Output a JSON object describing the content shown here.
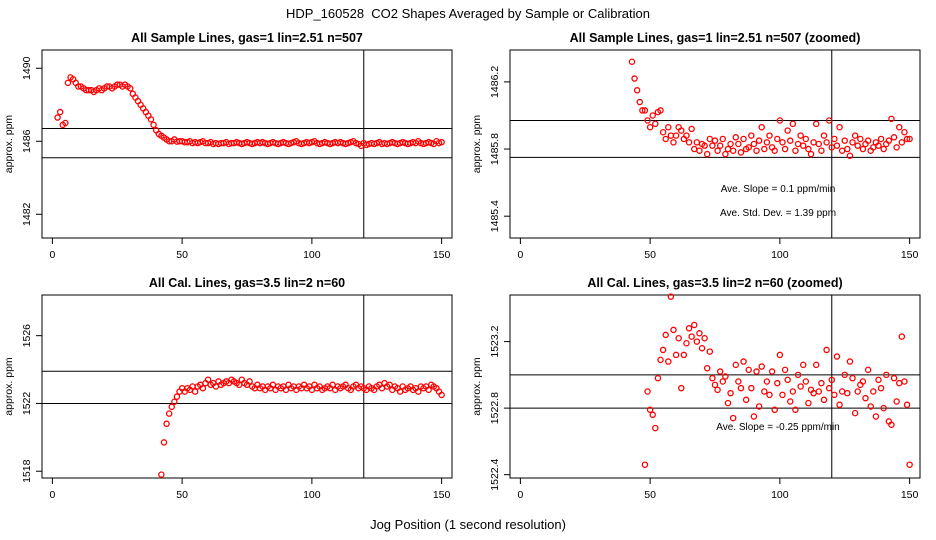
{
  "title": "HDP_160528  CO2 Shapes Averaged by Sample or Calibration",
  "xlabel": "Jog Position (1 second resolution)",
  "colors": {
    "points": "#ff0000",
    "lines": "#000000"
  },
  "chart_data": [
    {
      "type": "scatter",
      "title": "All Sample Lines, gas=1 lin=2.51 n=507",
      "ylabel": "approx. ppm",
      "xlim": [
        -4,
        154
      ],
      "ylim": [
        1480.7,
        1491.0
      ],
      "xticks": [
        "0",
        "50",
        "100",
        "150"
      ],
      "yticks": [
        "1482",
        "1486",
        "1490"
      ],
      "hlines": [
        1486.7,
        1485.1
      ],
      "vline": 120,
      "x": [
        2,
        3,
        4,
        5,
        6,
        7,
        8,
        9,
        10,
        11,
        12,
        13,
        14,
        15,
        16,
        17,
        18,
        19,
        20,
        21,
        22,
        23,
        24,
        25,
        26,
        27,
        28,
        29,
        30,
        31,
        32,
        33,
        34,
        35,
        36,
        37,
        38,
        39,
        40,
        41,
        42,
        43,
        44,
        45,
        46,
        47,
        48,
        49,
        50,
        51,
        52,
        53,
        54,
        55,
        56,
        57,
        58,
        59,
        60,
        61,
        62,
        63,
        64,
        65,
        66,
        67,
        68,
        69,
        70,
        71,
        72,
        73,
        74,
        75,
        76,
        77,
        78,
        79,
        80,
        81,
        82,
        83,
        84,
        85,
        86,
        87,
        88,
        89,
        90,
        91,
        92,
        93,
        94,
        95,
        96,
        97,
        98,
        99,
        100,
        101,
        102,
        103,
        104,
        105,
        106,
        107,
        108,
        109,
        110,
        111,
        112,
        113,
        114,
        115,
        116,
        117,
        118,
        119,
        120,
        121,
        122,
        123,
        124,
        125,
        126,
        127,
        128,
        129,
        130,
        131,
        132,
        133,
        134,
        135,
        136,
        137,
        138,
        139,
        140,
        141,
        142,
        143,
        144,
        145,
        146,
        147,
        148,
        149,
        150
      ],
      "y": [
        1487.3,
        1487.6,
        1486.9,
        1487.0,
        1489.2,
        1489.5,
        1489.4,
        1489.2,
        1489.0,
        1489.0,
        1488.9,
        1488.8,
        1488.8,
        1488.8,
        1488.7,
        1488.8,
        1488.9,
        1488.8,
        1488.9,
        1489.0,
        1489.0,
        1488.9,
        1489.0,
        1489.1,
        1489.1,
        1489.0,
        1489.1,
        1489.0,
        1488.9,
        1488.6,
        1488.4,
        1488.2,
        1488.0,
        1487.8,
        1487.6,
        1487.4,
        1487.2,
        1486.9,
        1486.6,
        1486.4,
        1486.3,
        1486.2,
        1486.1,
        1486.0,
        1486.0,
        1486.1,
        1485.98,
        1486.0,
        1486.0,
        1485.95,
        1485.95,
        1486.0,
        1485.9,
        1485.95,
        1485.9,
        1485.95,
        1486.0,
        1485.9,
        1485.9,
        1485.95,
        1485.85,
        1485.9,
        1485.85,
        1485.9,
        1485.9,
        1485.95,
        1485.85,
        1485.9,
        1485.9,
        1485.95,
        1485.9,
        1485.85,
        1485.9,
        1485.95,
        1485.9,
        1485.85,
        1485.9,
        1485.95,
        1485.9,
        1485.95,
        1485.9,
        1485.85,
        1485.9,
        1485.95,
        1485.9,
        1485.85,
        1485.9,
        1485.95,
        1485.9,
        1485.85,
        1485.9,
        1485.95,
        1486.0,
        1485.9,
        1485.85,
        1485.9,
        1485.95,
        1485.9,
        1485.95,
        1486.0,
        1485.9,
        1485.85,
        1485.9,
        1485.95,
        1485.9,
        1485.85,
        1485.9,
        1485.95,
        1485.9,
        1485.95,
        1485.9,
        1485.85,
        1485.9,
        1485.95,
        1486.0,
        1485.9,
        1485.85,
        1485.75,
        1485.9,
        1485.8,
        1485.85,
        1485.9,
        1485.85,
        1485.9,
        1485.95,
        1485.85,
        1485.9,
        1485.85,
        1485.9,
        1485.95,
        1485.9,
        1485.85,
        1485.9,
        1485.95,
        1485.9,
        1485.85,
        1485.9,
        1485.95,
        1485.9,
        1486.0,
        1485.9,
        1485.85,
        1485.9,
        1485.95,
        1485.9,
        1485.85,
        1486.0,
        1485.9,
        1485.95
      ],
      "annotations": []
    },
    {
      "type": "scatter",
      "title": "All Sample Lines, gas=1 lin=2.51 n=507 (zoomed)",
      "ylabel": "approx. ppm",
      "xlim": [
        -4,
        154
      ],
      "ylim": [
        1485.27,
        1486.39
      ],
      "xticks": [
        "0",
        "50",
        "100",
        "150"
      ],
      "yticks": [
        "1485.4",
        "1485.8",
        "1486.2"
      ],
      "hlines": [
        1485.97,
        1485.75
      ],
      "vline": 120,
      "x": [
        43,
        44,
        45,
        46,
        47,
        48,
        49,
        50,
        51,
        52,
        53,
        54,
        55,
        56,
        57,
        58,
        59,
        60,
        61,
        62,
        63,
        64,
        65,
        66,
        67,
        68,
        69,
        70,
        71,
        72,
        73,
        74,
        75,
        76,
        77,
        78,
        79,
        80,
        81,
        82,
        83,
        84,
        85,
        86,
        87,
        88,
        89,
        90,
        91,
        92,
        93,
        94,
        95,
        96,
        97,
        98,
        99,
        100,
        101,
        102,
        103,
        104,
        105,
        106,
        107,
        108,
        109,
        110,
        111,
        112,
        113,
        114,
        115,
        116,
        117,
        118,
        119,
        120,
        121,
        122,
        123,
        124,
        125,
        126,
        127,
        128,
        129,
        130,
        131,
        132,
        133,
        134,
        135,
        136,
        137,
        138,
        139,
        140,
        141,
        142,
        143,
        144,
        145,
        146,
        147,
        148,
        149,
        150
      ],
      "y": [
        1486.32,
        1486.22,
        1486.15,
        1486.08,
        1486.03,
        1486.03,
        1485.97,
        1485.93,
        1486.0,
        1485.95,
        1486.02,
        1486.03,
        1485.9,
        1485.86,
        1485.93,
        1485.88,
        1485.84,
        1485.88,
        1485.93,
        1485.91,
        1485.86,
        1485.88,
        1485.84,
        1485.92,
        1485.8,
        1485.84,
        1485.79,
        1485.83,
        1485.82,
        1485.77,
        1485.86,
        1485.82,
        1485.85,
        1485.79,
        1485.82,
        1485.86,
        1485.77,
        1485.8,
        1485.83,
        1485.79,
        1485.87,
        1485.83,
        1485.78,
        1485.86,
        1485.8,
        1485.81,
        1485.88,
        1485.83,
        1485.79,
        1485.85,
        1485.93,
        1485.8,
        1485.84,
        1485.88,
        1485.81,
        1485.79,
        1485.86,
        1485.97,
        1485.84,
        1485.8,
        1485.91,
        1485.85,
        1485.95,
        1485.79,
        1485.83,
        1485.88,
        1485.82,
        1485.86,
        1485.8,
        1485.77,
        1485.84,
        1485.95,
        1485.83,
        1485.79,
        1485.88,
        1485.84,
        1485.97,
        1485.81,
        1485.86,
        1485.82,
        1485.93,
        1485.79,
        1485.85,
        1485.8,
        1485.76,
        1485.84,
        1485.88,
        1485.82,
        1485.86,
        1485.8,
        1485.83,
        1485.85,
        1485.79,
        1485.81,
        1485.84,
        1485.82,
        1485.86,
        1485.8,
        1485.83,
        1485.85,
        1485.98,
        1485.87,
        1485.81,
        1485.93,
        1485.84,
        1485.9,
        1485.86,
        1485.86
      ],
      "annotations": [
        "Ave. Slope =  0.1  ppm/min",
        "Ave. Std. Dev. =  1.39  ppm"
      ]
    },
    {
      "type": "scatter",
      "title": "All Cal. Lines, gas=3.5 lin=2 n=60",
      "ylabel": "approx. ppm",
      "xlim": [
        -4,
        154
      ],
      "ylim": [
        1517.6,
        1528.4
      ],
      "xticks": [
        "0",
        "50",
        "100",
        "150"
      ],
      "yticks": [
        "1518",
        "1522",
        "1526"
      ],
      "hlines": [
        1523.9,
        1522.0
      ],
      "vline": 120,
      "x": [
        42,
        43,
        44,
        45,
        46,
        47,
        48,
        49,
        50,
        51,
        52,
        53,
        54,
        55,
        56,
        57,
        58,
        59,
        60,
        61,
        62,
        63,
        64,
        65,
        66,
        67,
        68,
        69,
        70,
        71,
        72,
        73,
        74,
        75,
        76,
        77,
        78,
        79,
        80,
        81,
        82,
        83,
        84,
        85,
        86,
        87,
        88,
        89,
        90,
        91,
        92,
        93,
        94,
        95,
        96,
        97,
        98,
        99,
        100,
        101,
        102,
        103,
        104,
        105,
        106,
        107,
        108,
        109,
        110,
        111,
        112,
        113,
        114,
        115,
        116,
        117,
        118,
        119,
        120,
        121,
        122,
        123,
        124,
        125,
        126,
        127,
        128,
        129,
        130,
        131,
        132,
        133,
        134,
        135,
        136,
        137,
        138,
        139,
        140,
        141,
        142,
        143,
        144,
        145,
        146,
        147,
        148,
        149,
        150
      ],
      "y": [
        1517.8,
        1519.7,
        1520.8,
        1521.4,
        1521.8,
        1522.1,
        1522.4,
        1522.7,
        1522.9,
        1522.7,
        1522.9,
        1522.8,
        1523.0,
        1522.7,
        1523.0,
        1523.1,
        1522.9,
        1523.2,
        1523.4,
        1523.1,
        1523.2,
        1523.0,
        1523.3,
        1523.1,
        1523.2,
        1523.3,
        1523.2,
        1523.4,
        1523.3,
        1523.2,
        1523.1,
        1523.4,
        1523.2,
        1523.1,
        1523.3,
        1523.0,
        1522.9,
        1523.1,
        1522.9,
        1523.0,
        1522.8,
        1523.0,
        1522.9,
        1523.1,
        1522.8,
        1523.0,
        1522.9,
        1523.0,
        1522.8,
        1523.1,
        1522.9,
        1523.0,
        1522.8,
        1523.0,
        1522.9,
        1523.1,
        1522.9,
        1523.0,
        1522.8,
        1523.1,
        1522.9,
        1523.0,
        1522.8,
        1522.9,
        1523.0,
        1522.9,
        1523.1,
        1522.8,
        1523.0,
        1522.9,
        1523.0,
        1523.1,
        1522.9,
        1522.8,
        1523.0,
        1523.1,
        1522.9,
        1523.0,
        1522.9,
        1522.8,
        1523.0,
        1522.9,
        1522.8,
        1523.0,
        1523.1,
        1522.9,
        1523.2,
        1523.0,
        1523.1,
        1522.8,
        1523.0,
        1522.9,
        1522.7,
        1523.0,
        1522.8,
        1522.9,
        1523.0,
        1522.8,
        1522.9,
        1522.7,
        1523.0,
        1522.9,
        1523.0,
        1522.8,
        1523.1,
        1523.0,
        1522.9,
        1522.7,
        1522.5
      ],
      "annotations": []
    },
    {
      "type": "scatter",
      "title": "All Cal. Lines, gas=3.5 lin=2 n=60 (zoomed)",
      "ylabel": "approx. ppm",
      "xlim": [
        -4,
        154
      ],
      "ylim": [
        1522.38,
        1523.48
      ],
      "xticks": [
        "0",
        "50",
        "100",
        "150"
      ],
      "yticks": [
        "1522.4",
        "1522.8",
        "1523.2"
      ],
      "hlines": [
        1523.0,
        1522.8
      ],
      "vline": 120,
      "x": [
        48,
        49,
        50,
        51,
        52,
        53,
        54,
        55,
        56,
        57,
        58,
        59,
        60,
        61,
        62,
        63,
        64,
        65,
        66,
        67,
        68,
        69,
        70,
        71,
        72,
        73,
        74,
        75,
        76,
        77,
        78,
        79,
        80,
        81,
        82,
        83,
        84,
        85,
        86,
        87,
        88,
        89,
        90,
        91,
        92,
        93,
        94,
        95,
        96,
        97,
        98,
        99,
        100,
        101,
        102,
        103,
        104,
        105,
        106,
        107,
        108,
        109,
        110,
        111,
        112,
        113,
        114,
        115,
        116,
        117,
        118,
        119,
        120,
        121,
        122,
        123,
        124,
        125,
        126,
        127,
        128,
        129,
        130,
        131,
        132,
        133,
        134,
        135,
        136,
        137,
        138,
        139,
        140,
        141,
        142,
        143,
        144,
        145,
        146,
        147,
        148,
        149,
        150
      ],
      "y": [
        1522.46,
        1522.9,
        1522.79,
        1522.76,
        1522.68,
        1522.98,
        1523.09,
        1523.15,
        1523.24,
        1523.08,
        1523.47,
        1523.27,
        1523.12,
        1523.22,
        1522.92,
        1523.12,
        1523.19,
        1523.28,
        1523.23,
        1523.3,
        1523.2,
        1523.25,
        1523.16,
        1523.22,
        1523.04,
        1523.14,
        1522.98,
        1522.94,
        1522.91,
        1523.02,
        1522.96,
        1522.99,
        1522.83,
        1522.89,
        1522.74,
        1523.06,
        1522.96,
        1522.92,
        1523.08,
        1522.85,
        1523.03,
        1522.92,
        1522.75,
        1523.02,
        1522.81,
        1523.05,
        1522.9,
        1522.96,
        1522.88,
        1523.02,
        1522.79,
        1522.95,
        1523.12,
        1522.88,
        1523.03,
        1522.97,
        1522.84,
        1522.9,
        1522.79,
        1523.0,
        1522.93,
        1523.06,
        1522.96,
        1522.83,
        1522.91,
        1522.89,
        1523.06,
        1522.9,
        1522.95,
        1522.85,
        1523.15,
        1522.92,
        1522.97,
        1522.88,
        1523.11,
        1522.82,
        1522.9,
        1523.0,
        1522.89,
        1523.08,
        1522.98,
        1522.77,
        1522.9,
        1522.94,
        1522.96,
        1522.86,
        1523.03,
        1522.81,
        1522.9,
        1522.75,
        1522.97,
        1522.92,
        1522.8,
        1523.0,
        1522.72,
        1522.7,
        1522.98,
        1522.84,
        1522.95,
        1523.23,
        1522.96,
        1522.82,
        1522.46
      ],
      "annotations": [
        "Ave. Slope =  -0.25  ppm/min"
      ]
    }
  ]
}
